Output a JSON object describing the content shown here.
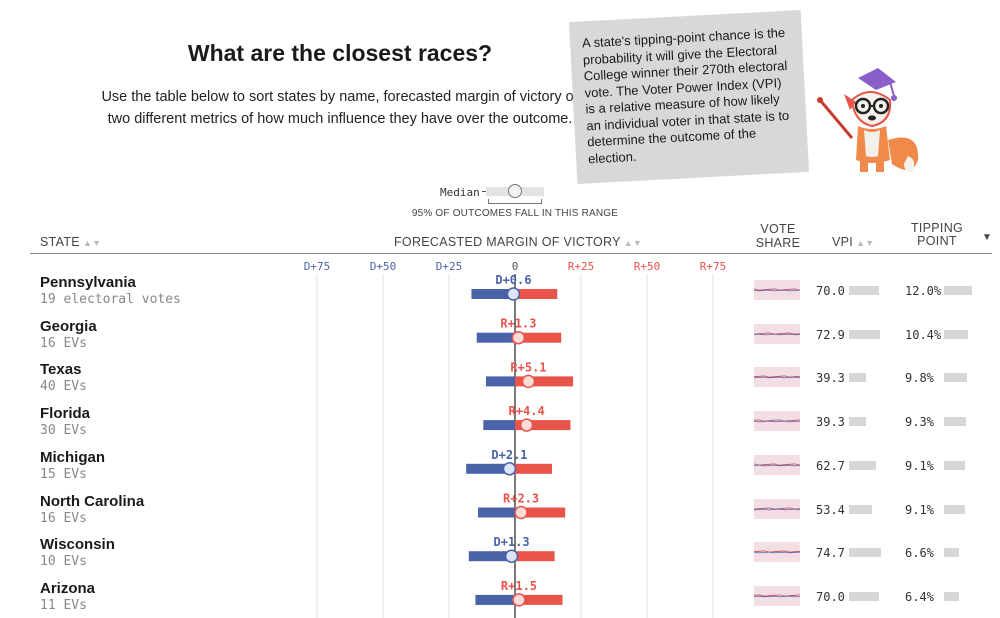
{
  "header": {
    "title": "What are the closest races?",
    "subtitle": "Use the table below to sort states by name, forecasted margin of victory or two different metrics of how much influence they have over the outcome."
  },
  "note": {
    "text": "A state's tipping-point chance is the probability it will give the Electoral College winner their 270th electoral vote. The Voter Power Index (VPI) is a relative measure of how likely an individual voter in that state is to determine the outcome of the election."
  },
  "legend": {
    "median_label": "Median",
    "range_label": "95% OF OUTCOMES FALL IN THIS RANGE"
  },
  "columns": {
    "state": "STATE",
    "margin": "FORECASTED MARGIN OF VICTORY",
    "vote_share": "VOTE SHARE",
    "vpi": "VPI",
    "tipping_point": "TIPPING POINT"
  },
  "colors": {
    "dem": "#4a63a8",
    "rep": "#e8534a",
    "bar_gray": "#d6d6d6",
    "spark_bg": "#f3dfe3"
  },
  "icons": {
    "mascot": "fox-mascot-icon",
    "sort": "sort-arrows-icon"
  },
  "chart_data": {
    "type": "table",
    "x_ticks": [
      "D+75",
      "D+50",
      "D+25",
      "0",
      "R+25",
      "R+50",
      "R+75"
    ],
    "xlim": [
      -75,
      75
    ],
    "rows": [
      {
        "state": "Pennsylvania",
        "ev_label": "19 electoral votes",
        "margin_label": "D+0.6",
        "margin": -0.6,
        "range": [
          -16.5,
          16.0
        ],
        "vpi": "70.0",
        "vpi_value": 70.0,
        "tipping": "12.0%",
        "tipping_value": 12.0
      },
      {
        "state": "Georgia",
        "ev_label": "16 EVs",
        "margin_label": "R+1.3",
        "margin": 1.3,
        "range": [
          -14.5,
          17.5
        ],
        "vpi": "72.9",
        "vpi_value": 72.9,
        "tipping": "10.4%",
        "tipping_value": 10.4
      },
      {
        "state": "Texas",
        "ev_label": "40 EVs",
        "margin_label": "R+5.1",
        "margin": 5.1,
        "range": [
          -11.0,
          22.0
        ],
        "vpi": "39.3",
        "vpi_value": 39.3,
        "tipping": "9.8%",
        "tipping_value": 9.8
      },
      {
        "state": "Florida",
        "ev_label": "30 EVs",
        "margin_label": "R+4.4",
        "margin": 4.4,
        "range": [
          -12.0,
          21.0
        ],
        "vpi": "39.3",
        "vpi_value": 39.3,
        "tipping": "9.3%",
        "tipping_value": 9.3
      },
      {
        "state": "Michigan",
        "ev_label": "15 EVs",
        "margin_label": "D+2.1",
        "margin": -2.1,
        "range": [
          -18.5,
          14.0
        ],
        "vpi": "62.7",
        "vpi_value": 62.7,
        "tipping": "9.1%",
        "tipping_value": 9.1
      },
      {
        "state": "North Carolina",
        "ev_label": "16 EVs",
        "margin_label": "R+2.3",
        "margin": 2.3,
        "range": [
          -14.0,
          19.0
        ],
        "vpi": "53.4",
        "vpi_value": 53.4,
        "tipping": "9.1%",
        "tipping_value": 9.1
      },
      {
        "state": "Wisconsin",
        "ev_label": "10 EVs",
        "margin_label": "D+1.3",
        "margin": -1.3,
        "range": [
          -17.5,
          15.0
        ],
        "vpi": "74.7",
        "vpi_value": 74.7,
        "tipping": "6.6%",
        "tipping_value": 6.6
      },
      {
        "state": "Arizona",
        "ev_label": "11 EVs",
        "margin_label": "R+1.5",
        "margin": 1.5,
        "range": [
          -15.0,
          18.0
        ],
        "vpi": "70.0",
        "vpi_value": 70.0,
        "tipping": "6.4%",
        "tipping_value": 6.4
      }
    ]
  }
}
